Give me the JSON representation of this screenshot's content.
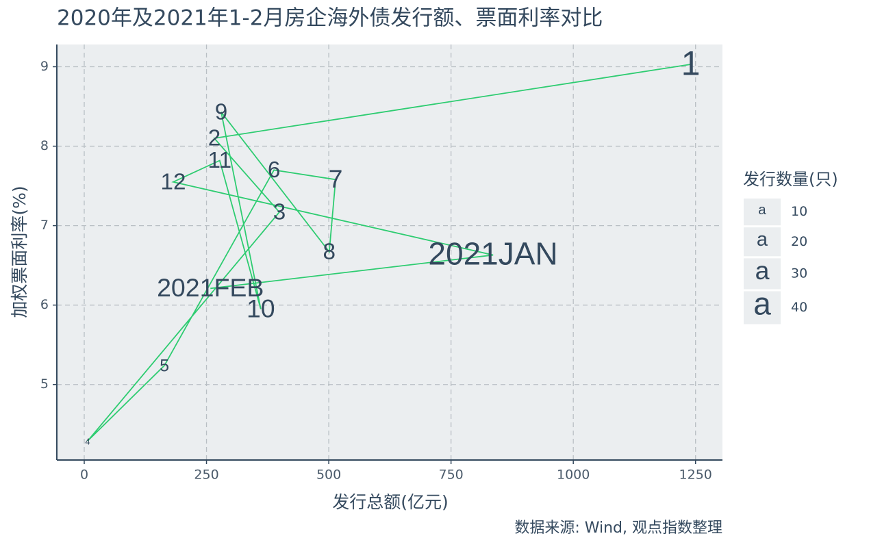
{
  "chart_data": {
    "type": "scatter",
    "title": "2020年及2021年1-2月房企海外债发行额、票面利率对比",
    "x_label": "发行总额(亿元)",
    "y_label": "加权票面利率(%)",
    "source": "数据来源: Wind, 观点指数整理",
    "labels": [
      "1",
      "2",
      "3",
      "4",
      "5",
      "6",
      "7",
      "8",
      "9",
      "10",
      "11",
      "12",
      "2021JAN",
      "2021FEB"
    ],
    "x": [
      1240,
      266,
      399,
      7,
      164,
      388,
      514,
      501,
      280,
      361,
      277,
      182,
      836,
      258
    ],
    "values": [
      9.03,
      8.1,
      7.17,
      4.29,
      5.24,
      7.7,
      7.58,
      6.67,
      8.43,
      5.95,
      7.82,
      7.55,
      6.63,
      6.21
    ],
    "sizes": [
      45,
      25,
      25,
      1,
      15,
      25,
      30,
      25,
      25,
      30,
      25,
      25,
      40,
      30
    ],
    "color": "#2ecc71",
    "connect": true,
    "xlim": [
      -56,
      1305
    ],
    "ylim": [
      4.05,
      9.28
    ],
    "xticks": [
      0,
      250,
      500,
      750,
      1000,
      1250
    ],
    "yticks": [
      5,
      6,
      7,
      8,
      9
    ],
    "grid": true,
    "size_legend": {
      "title": "发行数量(只)",
      "symbol": "a",
      "values": [
        10,
        20,
        30,
        40
      ]
    }
  }
}
